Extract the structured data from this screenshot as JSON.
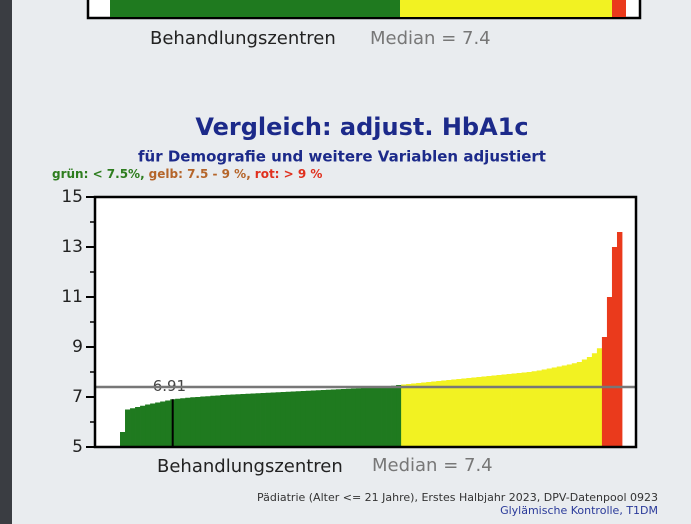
{
  "top_fragment": {
    "x_label": "Behandlungszentren",
    "median_label": "Median = 7.4"
  },
  "chart_data": {
    "type": "bar",
    "title": "Vergleich:  adjust. HbA1c",
    "subtitle": "für Demografie und weitere Variablen adjustiert",
    "legend": [
      {
        "text": "grün: < 7.5%,",
        "color": "#2e7d1f"
      },
      {
        "text": "gelb: 7.5 - 9 %,",
        "color": "#b5652a"
      },
      {
        "text": "rot: > 9 %",
        "color": "#e0301e"
      }
    ],
    "thresholds": [
      7.5,
      9
    ],
    "colors": [
      "#1f7a1f",
      "#f2f222",
      "#ea3a1c"
    ],
    "x_label": "Behandlungszentren",
    "median": 7.4,
    "median_label": "Median = 7.4",
    "marker": 6.91,
    "ylim": [
      5,
      15
    ],
    "yticks": [
      5,
      7,
      9,
      11,
      13,
      15
    ],
    "minor_yticks": [
      6,
      8,
      10,
      12,
      14
    ],
    "values": [
      5.6,
      6.5,
      6.55,
      6.6,
      6.65,
      6.7,
      6.74,
      6.78,
      6.82,
      6.86,
      6.91,
      6.93,
      6.95,
      6.97,
      6.99,
      7.0,
      7.02,
      7.03,
      7.05,
      7.06,
      7.08,
      7.09,
      7.1,
      7.11,
      7.12,
      7.13,
      7.14,
      7.15,
      7.16,
      7.17,
      7.18,
      7.19,
      7.2,
      7.21,
      7.22,
      7.23,
      7.24,
      7.25,
      7.26,
      7.27,
      7.28,
      7.29,
      7.3,
      7.31,
      7.32,
      7.33,
      7.34,
      7.35,
      7.36,
      7.37,
      7.38,
      7.39,
      7.41,
      7.43,
      7.45,
      7.48,
      7.5,
      7.52,
      7.54,
      7.56,
      7.58,
      7.6,
      7.62,
      7.64,
      7.66,
      7.68,
      7.7,
      7.72,
      7.74,
      7.76,
      7.78,
      7.8,
      7.82,
      7.84,
      7.86,
      7.88,
      7.9,
      7.92,
      7.94,
      7.96,
      7.98,
      8.0,
      8.03,
      8.06,
      8.1,
      8.14,
      8.18,
      8.22,
      8.26,
      8.3,
      8.35,
      8.4,
      8.5,
      8.6,
      8.75,
      8.95,
      9.4,
      11.0,
      13.0,
      13.6
    ]
  },
  "footer": {
    "line1": "Pädiatrie (Alter <= 21 Jahre), Erstes Halbjahr 2023, DPV-Datenpool 0923",
    "line2": "Glylämische Kontrolle, T1DM"
  }
}
